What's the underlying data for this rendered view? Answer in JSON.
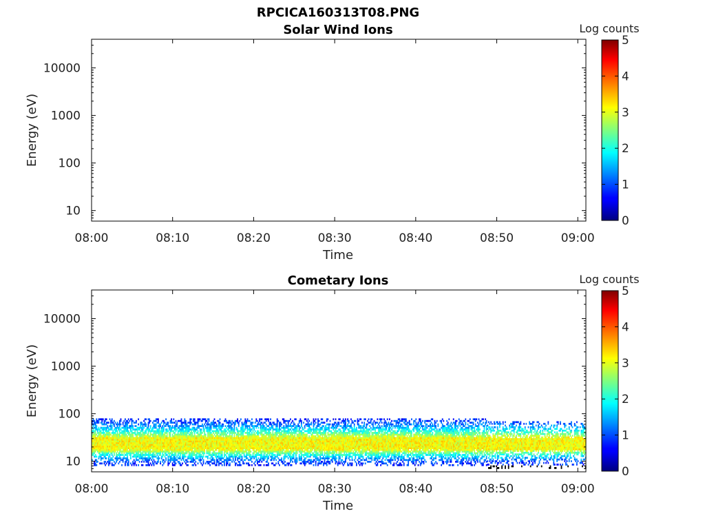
{
  "figure_title": "RPCICA160313T08.PNG",
  "chart_data": [
    {
      "type": "heatmap",
      "title": "Solar Wind Ions",
      "xlabel": "Time",
      "ylabel": "Energy (eV)",
      "x_ticks": [
        "08:00",
        "08:10",
        "08:20",
        "08:30",
        "08:40",
        "08:50",
        "09:00"
      ],
      "x_range": [
        "08:00",
        "09:00"
      ],
      "y_scale": "log",
      "y_ticks": [
        10,
        100,
        1000,
        10000
      ],
      "y_tick_labels": [
        "10",
        "100",
        "1000",
        "10000"
      ],
      "y_range": [
        6,
        40000
      ],
      "colorbar": {
        "label": "Log counts",
        "range": [
          0,
          5
        ],
        "ticks": [
          "0",
          "1",
          "2",
          "3",
          "4",
          "5"
        ],
        "colormap": "jet"
      },
      "bands": []
    },
    {
      "type": "heatmap",
      "title": "Cometary Ions",
      "xlabel": "Time",
      "ylabel": "Energy (eV)",
      "x_ticks": [
        "08:00",
        "08:10",
        "08:20",
        "08:30",
        "08:40",
        "08:50",
        "09:00"
      ],
      "x_range": [
        "08:00",
        "09:00"
      ],
      "y_scale": "log",
      "y_ticks": [
        10,
        100,
        1000,
        10000
      ],
      "y_tick_labels": [
        "10",
        "100",
        "1000",
        "10000"
      ],
      "y_range": [
        6,
        40000
      ],
      "colorbar": {
        "label": "Log counts",
        "range": [
          0,
          5
        ],
        "ticks": [
          "0",
          "1",
          "2",
          "3",
          "4",
          "5"
        ],
        "colormap": "jet"
      },
      "bands": [
        {
          "description": "ion signal spread between about 10 and 80 eV, peaking near 20-30 eV",
          "energy_range_eV": [
            8,
            80
          ],
          "peak_energy_eV": [
            17,
            30
          ],
          "peak_log_counts": 3.1,
          "edge_log_counts": 0.8,
          "time_range": [
            "08:00",
            "09:01"
          ]
        }
      ]
    }
  ]
}
